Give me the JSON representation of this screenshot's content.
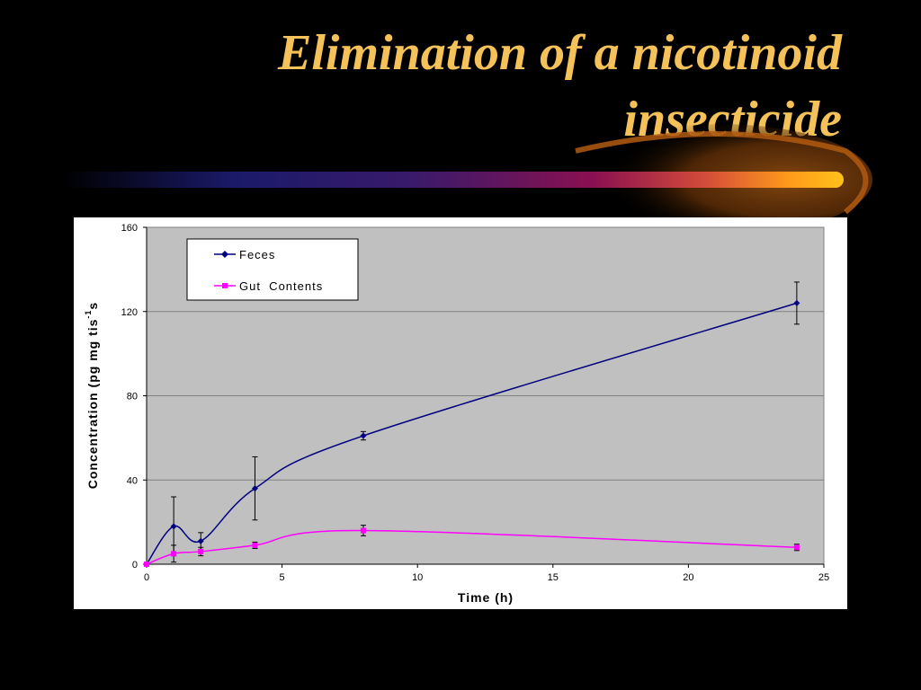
{
  "slide": {
    "title_line1": "Elimination of a nicotinoid",
    "title_line2": "insecticide"
  },
  "colors": {
    "background": "#000000",
    "title": "#f5c25a",
    "plot_area": "#c0c0c0",
    "feces": "#000080",
    "gut_contents": "#ff00ff"
  },
  "chart_data": {
    "type": "line",
    "title": "",
    "xlabel": "Time (h)",
    "ylabel_main": "Concentration (pg mg tis",
    "ylabel_sup": "-1",
    "ylabel_end": "s",
    "xlim": [
      0,
      25
    ],
    "ylim": [
      0,
      160
    ],
    "x_ticks": [
      0,
      5,
      10,
      15,
      20,
      25
    ],
    "y_ticks": [
      0,
      40,
      80,
      120,
      160
    ],
    "grid": true,
    "smooth": true,
    "legend_position": "top-left",
    "series": [
      {
        "name": "Feces",
        "marker": "diamond",
        "color": "#000080",
        "x": [
          0,
          1,
          2,
          4,
          8,
          24
        ],
        "y": [
          0,
          18,
          11,
          36,
          61,
          124
        ],
        "error": [
          0,
          14,
          4,
          15,
          2,
          10
        ]
      },
      {
        "name": "Gut  Contents",
        "marker": "square",
        "color": "#ff00ff",
        "x": [
          0,
          1,
          2,
          4,
          8,
          24
        ],
        "y": [
          0,
          5,
          6,
          9,
          16,
          8
        ],
        "error": [
          0,
          4,
          2,
          1.5,
          2.5,
          1.5
        ]
      }
    ]
  }
}
